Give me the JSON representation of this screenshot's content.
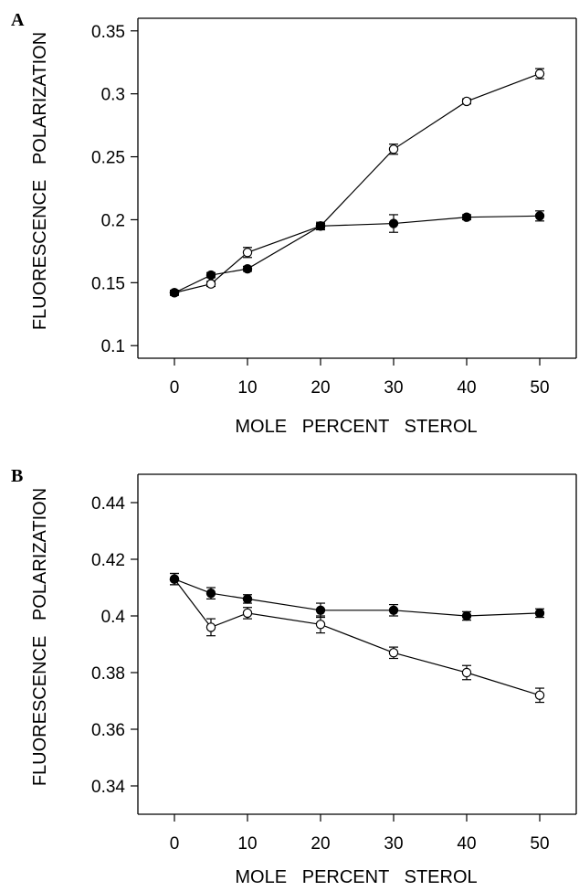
{
  "chart_data": [
    {
      "type": "line",
      "panel_label": "A",
      "xlabel": "MOLE   PERCENT   STEROL",
      "ylabel": "FLUORESCENCE   POLARIZATION",
      "xlim": [
        -5,
        55
      ],
      "ylim": [
        0.09,
        0.36
      ],
      "x_ticks": [
        "0",
        "10",
        "20",
        "30",
        "40",
        "50"
      ],
      "y_ticks": [
        "0.1",
        "0.15",
        "0.2",
        "0.25",
        "0.3",
        "0.35"
      ],
      "series": [
        {
          "marker": "open-circle",
          "x": [
            0,
            5,
            10,
            20,
            30,
            40,
            50
          ],
          "y": [
            0.142,
            0.149,
            0.174,
            0.195,
            0.256,
            0.294,
            0.316
          ],
          "err": [
            0.002,
            0.002,
            0.004,
            0.002,
            0.004,
            0.002,
            0.004
          ]
        },
        {
          "marker": "filled-circle",
          "x": [
            0,
            5,
            10,
            20,
            30,
            40,
            50
          ],
          "y": [
            0.142,
            0.156,
            0.161,
            0.195,
            0.197,
            0.202,
            0.203
          ],
          "err": [
            0.002,
            0.002,
            0.002,
            0.003,
            0.007,
            0.002,
            0.004
          ]
        }
      ]
    },
    {
      "type": "line",
      "panel_label": "B",
      "xlabel": "MOLE   PERCENT   STEROL",
      "ylabel": "FLUORESCENCE   POLARIZATION",
      "xlim": [
        -5,
        55
      ],
      "ylim": [
        0.33,
        0.45
      ],
      "x_ticks": [
        "0",
        "10",
        "20",
        "30",
        "40",
        "50"
      ],
      "y_ticks": [
        "0.34",
        "0.36",
        "0.38",
        "0.4",
        "0.42",
        "0.44"
      ],
      "series": [
        {
          "marker": "open-circle",
          "x": [
            0,
            5,
            10,
            20,
            30,
            40,
            50
          ],
          "y": [
            0.413,
            0.396,
            0.401,
            0.397,
            0.387,
            0.38,
            0.372
          ],
          "err": [
            0.002,
            0.003,
            0.002,
            0.003,
            0.002,
            0.0025,
            0.0025
          ]
        },
        {
          "marker": "filled-circle",
          "x": [
            0,
            5,
            10,
            20,
            30,
            40,
            50
          ],
          "y": [
            0.413,
            0.408,
            0.406,
            0.402,
            0.402,
            0.4,
            0.401
          ],
          "err": [
            0.002,
            0.002,
            0.0015,
            0.0025,
            0.002,
            0.0015,
            0.0015
          ]
        }
      ]
    }
  ]
}
